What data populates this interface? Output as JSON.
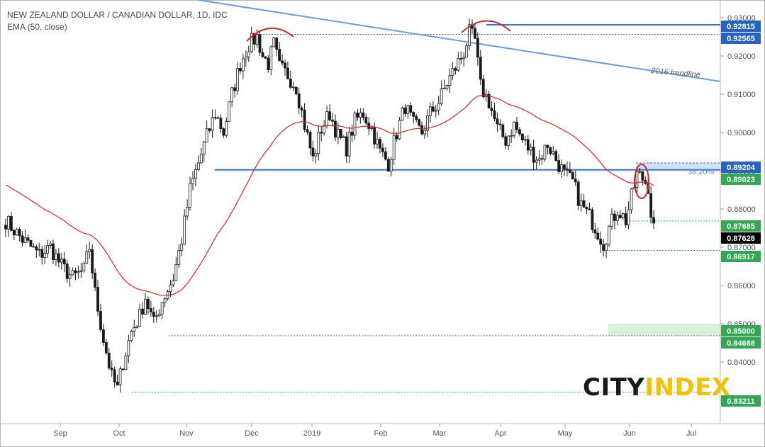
{
  "header": {
    "title": "NEW ZEALAND DOLLAR / CANADIAN DOLLAR, 1D, IDC",
    "indicator": "EMA (50, close)"
  },
  "logo": {
    "part1": "CITY",
    "part2": "INDEX",
    "color1": "#1a1a1a",
    "color2": "#f2c200"
  },
  "colors": {
    "up_candle": "#1a1a1a",
    "down_candle": "#1a1a1a",
    "ema": "#d62728",
    "blue_line": "#3a6fd8",
    "trendline": "#6e9be0",
    "green_label": "#2fa84f",
    "blue_label": "#2563c9",
    "black_label": "#000000",
    "arc": "#d62728"
  },
  "chart_data": {
    "type": "candlestick",
    "instrument": "NZD/CAD",
    "timeframe": "1D",
    "ylim": [
      0.826,
      0.931
    ],
    "y_ticks": [
      "0.93000",
      "0.92000",
      "0.91000",
      "0.90000",
      "0.89000",
      "0.88000",
      "0.87000",
      "0.86000",
      "0.85000",
      "0.84000",
      "0.83000"
    ],
    "x_ticks": [
      "Sep",
      "Oct",
      "Nov",
      "Dec",
      "2019",
      "Feb",
      "Mar",
      "Apr",
      "May",
      "Jun",
      "Jul"
    ],
    "price_labels": [
      {
        "label": "0.92815",
        "color": "blue"
      },
      {
        "label": "0.92565",
        "color": "blue"
      },
      {
        "label": "0.89204",
        "color": "blue"
      },
      {
        "label": "0.89023",
        "color": "green"
      },
      {
        "label": "0.87685",
        "color": "green"
      },
      {
        "label": "0.87628",
        "color": "black"
      },
      {
        "label": "0.86917",
        "color": "green"
      },
      {
        "label": "0.85000",
        "color": "green"
      },
      {
        "label": "0.84688",
        "color": "green"
      },
      {
        "label": "0.83211",
        "color": "green"
      }
    ],
    "annotations": {
      "trendline_label": "2016 trendline",
      "fib_label": "38.20%"
    },
    "ema_period": 50,
    "swing_path": [
      [
        0,
        0.877
      ],
      [
        6,
        0.872
      ],
      [
        12,
        0.868
      ],
      [
        16,
        0.87
      ],
      [
        20,
        0.865
      ],
      [
        24,
        0.862
      ],
      [
        28,
        0.864
      ],
      [
        30,
        0.87
      ],
      [
        32,
        0.858
      ],
      [
        35,
        0.846
      ],
      [
        38,
        0.836
      ],
      [
        40,
        0.833
      ],
      [
        42,
        0.84
      ],
      [
        45,
        0.848
      ],
      [
        48,
        0.852
      ],
      [
        50,
        0.857
      ],
      [
        53,
        0.85
      ],
      [
        56,
        0.856
      ],
      [
        60,
        0.862
      ],
      [
        63,
        0.872
      ],
      [
        66,
        0.885
      ],
      [
        69,
        0.892
      ],
      [
        72,
        0.899
      ],
      [
        75,
        0.905
      ],
      [
        78,
        0.9
      ],
      [
        81,
        0.91
      ],
      [
        84,
        0.918
      ],
      [
        87,
        0.923
      ],
      [
        90,
        0.925
      ],
      [
        92,
        0.92
      ],
      [
        94,
        0.918
      ],
      [
        96,
        0.923
      ],
      [
        98,
        0.917
      ],
      [
        101,
        0.915
      ],
      [
        104,
        0.912
      ],
      [
        107,
        0.902
      ],
      [
        110,
        0.893
      ],
      [
        113,
        0.901
      ],
      [
        116,
        0.905
      ],
      [
        119,
        0.899
      ],
      [
        122,
        0.896
      ],
      [
        125,
        0.903
      ],
      [
        128,
        0.905
      ],
      [
        131,
        0.901
      ],
      [
        134,
        0.895
      ],
      [
        137,
        0.892
      ],
      [
        140,
        0.9
      ],
      [
        143,
        0.907
      ],
      [
        146,
        0.902
      ],
      [
        149,
        0.9
      ],
      [
        152,
        0.905
      ],
      [
        155,
        0.908
      ],
      [
        158,
        0.913
      ],
      [
        161,
        0.917
      ],
      [
        164,
        0.921
      ],
      [
        166,
        0.926
      ],
      [
        168,
        0.924
      ],
      [
        170,
        0.912
      ],
      [
        173,
        0.908
      ],
      [
        176,
        0.901
      ],
      [
        179,
        0.898
      ],
      [
        182,
        0.902
      ],
      [
        185,
        0.898
      ],
      [
        188,
        0.895
      ],
      [
        191,
        0.893
      ],
      [
        194,
        0.897
      ],
      [
        197,
        0.893
      ],
      [
        200,
        0.889
      ],
      [
        203,
        0.887
      ],
      [
        206,
        0.881
      ],
      [
        209,
        0.878
      ],
      [
        212,
        0.874
      ],
      [
        214,
        0.871
      ],
      [
        216,
        0.875
      ],
      [
        219,
        0.88
      ],
      [
        222,
        0.877
      ],
      [
        224,
        0.883
      ],
      [
        226,
        0.889
      ],
      [
        228,
        0.888
      ],
      [
        230,
        0.886
      ],
      [
        231,
        0.879
      ],
      [
        232,
        0.8763
      ]
    ]
  }
}
